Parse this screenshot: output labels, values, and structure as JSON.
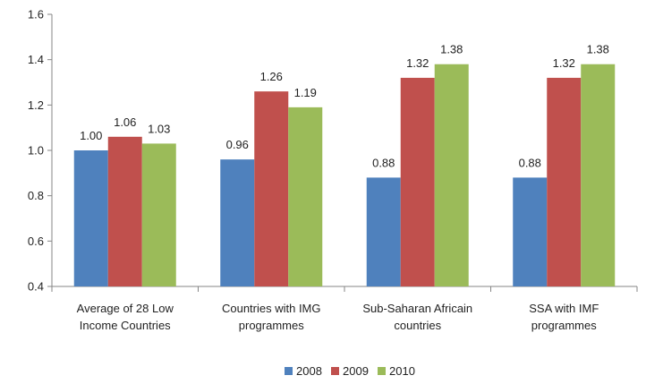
{
  "chart_data": {
    "type": "bar",
    "title": "",
    "xlabel": "",
    "ylabel": "",
    "ylim": [
      0.4,
      1.6
    ],
    "yticks": [
      "0.4",
      "0.6",
      "0.8",
      "1.0",
      "1.2",
      "1.4",
      "1.6"
    ],
    "ytick_values": [
      0.4,
      0.6,
      0.8,
      1.0,
      1.2,
      1.4,
      1.6
    ],
    "grid": false,
    "legend_position": "bottom",
    "categories": [
      [
        "Average of 28 Low",
        "Income Countries"
      ],
      [
        "Countries with IMG",
        "programmes"
      ],
      [
        "Sub-Saharan Africain",
        "countries"
      ],
      [
        "SSA with IMF",
        "programmes"
      ]
    ],
    "series": [
      {
        "name": "2008",
        "color": "#4F81BD",
        "values": [
          1.0,
          0.96,
          0.88,
          0.88
        ],
        "labels": [
          "1.00",
          "0.96",
          "0.88",
          "0.88"
        ]
      },
      {
        "name": "2009",
        "color": "#C0504D",
        "values": [
          1.06,
          1.26,
          1.32,
          1.32
        ],
        "labels": [
          "1.06",
          "1.26",
          "1.32",
          "1.32"
        ]
      },
      {
        "name": "2010",
        "color": "#9BBB59",
        "values": [
          1.03,
          1.19,
          1.38,
          1.38
        ],
        "labels": [
          "1.03",
          "1.19",
          "1.38",
          "1.38"
        ]
      }
    ]
  }
}
